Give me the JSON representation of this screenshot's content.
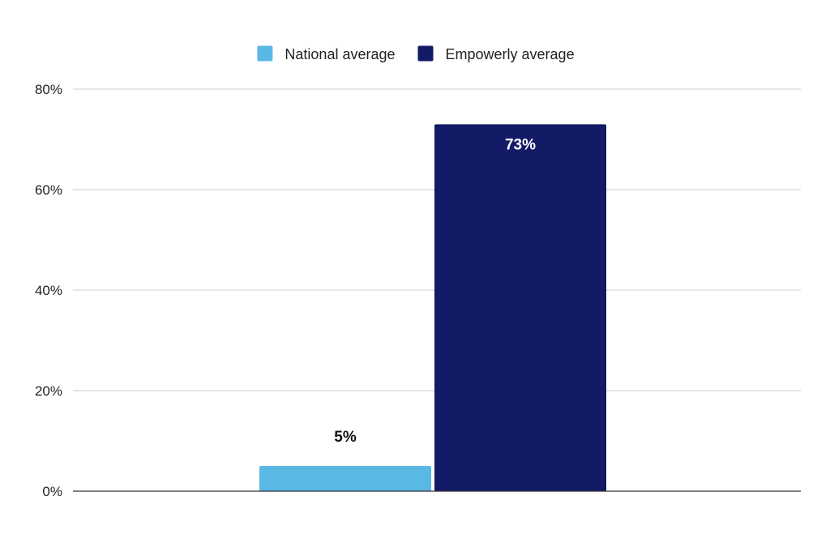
{
  "chart_data": {
    "type": "bar",
    "categories": [
      ""
    ],
    "series": [
      {
        "name": "National average",
        "values": [
          5
        ],
        "color": "#5ab8e4",
        "label_color": "#111111"
      },
      {
        "name": "Empowerly average",
        "values": [
          73
        ],
        "color": "#131a66",
        "label_color": "#ffffff"
      }
    ],
    "data_labels": [
      "5%",
      "73%"
    ],
    "title": "",
    "xlabel": "",
    "ylabel": "",
    "ylim": [
      0,
      80
    ],
    "yticks": [
      0,
      20,
      40,
      60,
      80
    ],
    "ytick_labels": [
      "0%",
      "20%",
      "40%",
      "60%",
      "80%"
    ],
    "grid": true,
    "legend_position": "top-center"
  }
}
